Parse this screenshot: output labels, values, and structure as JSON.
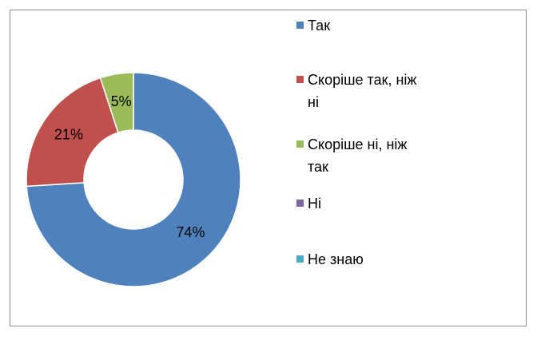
{
  "chart_data": {
    "type": "donut",
    "categories": [
      "Так",
      "Скоріше так, ніж ні",
      "Скоріше ні, ніж так",
      "Ні",
      "Не знаю"
    ],
    "values": [
      74,
      21,
      5,
      0,
      0
    ],
    "value_labels": [
      "74%",
      "21%",
      "5%",
      null,
      null
    ],
    "colors": [
      "#4f81bd",
      "#c0504d",
      "#9bbb59",
      "#8064a2",
      "#4bacc6"
    ],
    "legend": "right"
  }
}
